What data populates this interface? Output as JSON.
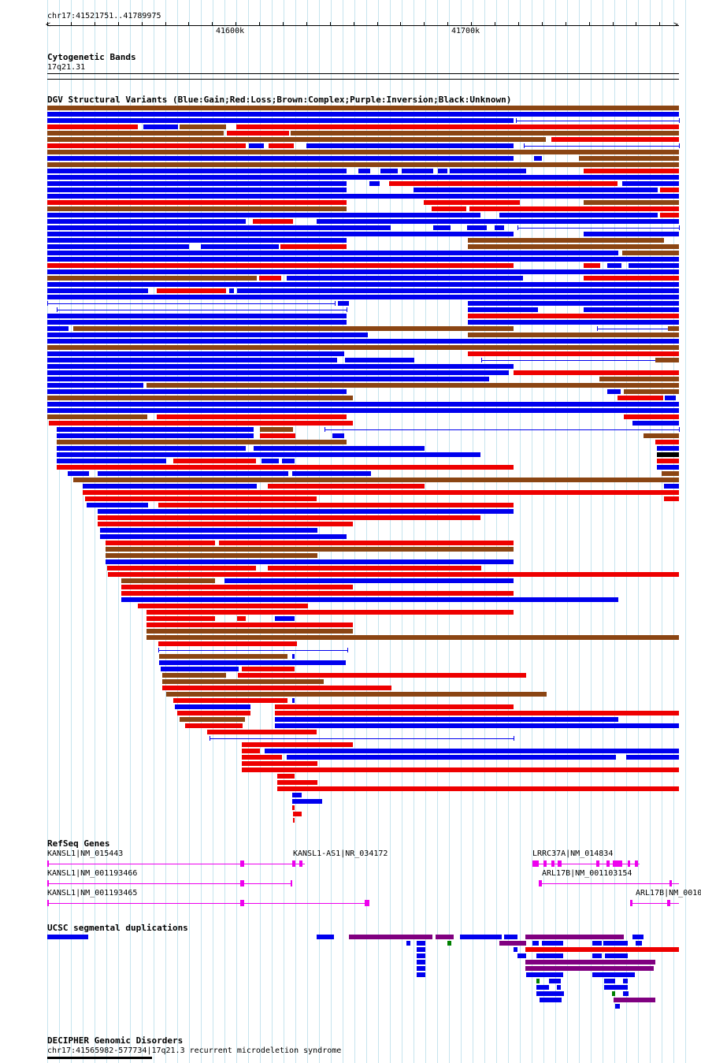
{
  "header": {
    "position": "chr17:41521751..41789975",
    "ticks": [
      "41600k",
      "41700k"
    ]
  },
  "tracks": {
    "cytobands": {
      "title": "Cytogenetic Bands",
      "band": "17q21.31"
    },
    "dgv": {
      "title": "DGV Structural Variants (Blue:Gain;Red:Loss;Brown:Complex;Purple:Inversion;Black:Unknown)"
    },
    "refseq": {
      "title": "RefSeq Genes",
      "labels": [
        "KANSL1|NM_015443",
        "KANSL1-AS1|NR_034172",
        "LRRC37A|NM_014834",
        "KANSL1|NM_001193466",
        "ARL17B|NM_001103154",
        "KANSL1|NM_001193465",
        "ARL17B|NM_0010"
      ]
    },
    "segdup": {
      "title": "UCSC segmental duplications"
    },
    "decipher": {
      "title": "DECIPHER Genomic Disorders",
      "label": "chr17:41565982-577734|17q21.3 recurrent microdeletion syndrome"
    }
  },
  "colors": {
    "gain": "#0000ee",
    "loss": "#ee0000",
    "complex": "#8b4513",
    "unknown": "#000000",
    "gene": "#ee00ee",
    "segdup_purple": "#800080",
    "segdup_green": "#008000",
    "gridline": "#c6e4ee"
  }
}
